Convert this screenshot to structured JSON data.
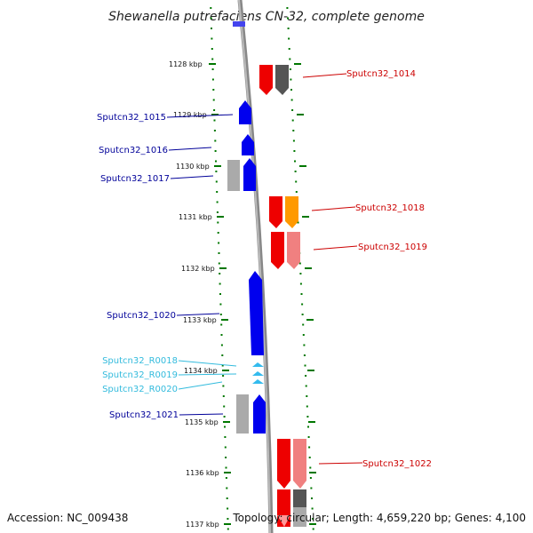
{
  "title": "Shewanella putrefaciens CN-32, complete genome",
  "accession": "Accession: NC_009438",
  "topology": "Topology: circular; Length: 4,659,220 bp; Genes: 4,100",
  "colors": {
    "forward_cds": "#0000ee",
    "reverse_cds": "#ee0000",
    "rna": "#33bbee",
    "other_gray": "#aaaaaa",
    "orange": "#ff9900",
    "pink": "#f08080",
    "dark_gray": "#555555",
    "backbone": "#888888",
    "tick_green": "#007700",
    "label_blue": "#000099",
    "label_red": "#cc0000",
    "label_cyan": "#33bbdd"
  },
  "chart_data": {
    "type": "genome_map",
    "kbp_ticks": [
      "1128 kbp",
      "1129 kbp",
      "1130 kbp",
      "1131 kbp",
      "1132 kbp",
      "1133 kbp",
      "1134 kbp",
      "1135 kbp",
      "1136 kbp",
      "1137 kbp"
    ],
    "left_labels": [
      {
        "text": "Sputcn32_1015",
        "color": "blue"
      },
      {
        "text": "Sputcn32_1016",
        "color": "blue"
      },
      {
        "text": "Sputcn32_1017",
        "color": "blue"
      },
      {
        "text": "Sputcn32_1020",
        "color": "blue"
      },
      {
        "text": "Sputcn32_R0018",
        "color": "cyan"
      },
      {
        "text": "Sputcn32_R0019",
        "color": "cyan"
      },
      {
        "text": "Sputcn32_R0020",
        "color": "cyan"
      },
      {
        "text": "Sputcn32_1021",
        "color": "blue"
      }
    ],
    "right_labels": [
      {
        "text": "Sputcn32_1014",
        "color": "red"
      },
      {
        "text": "Sputcn32_1018",
        "color": "red"
      },
      {
        "text": "Sputcn32_1019",
        "color": "red"
      },
      {
        "text": "Sputcn32_1022",
        "color": "red"
      }
    ]
  }
}
